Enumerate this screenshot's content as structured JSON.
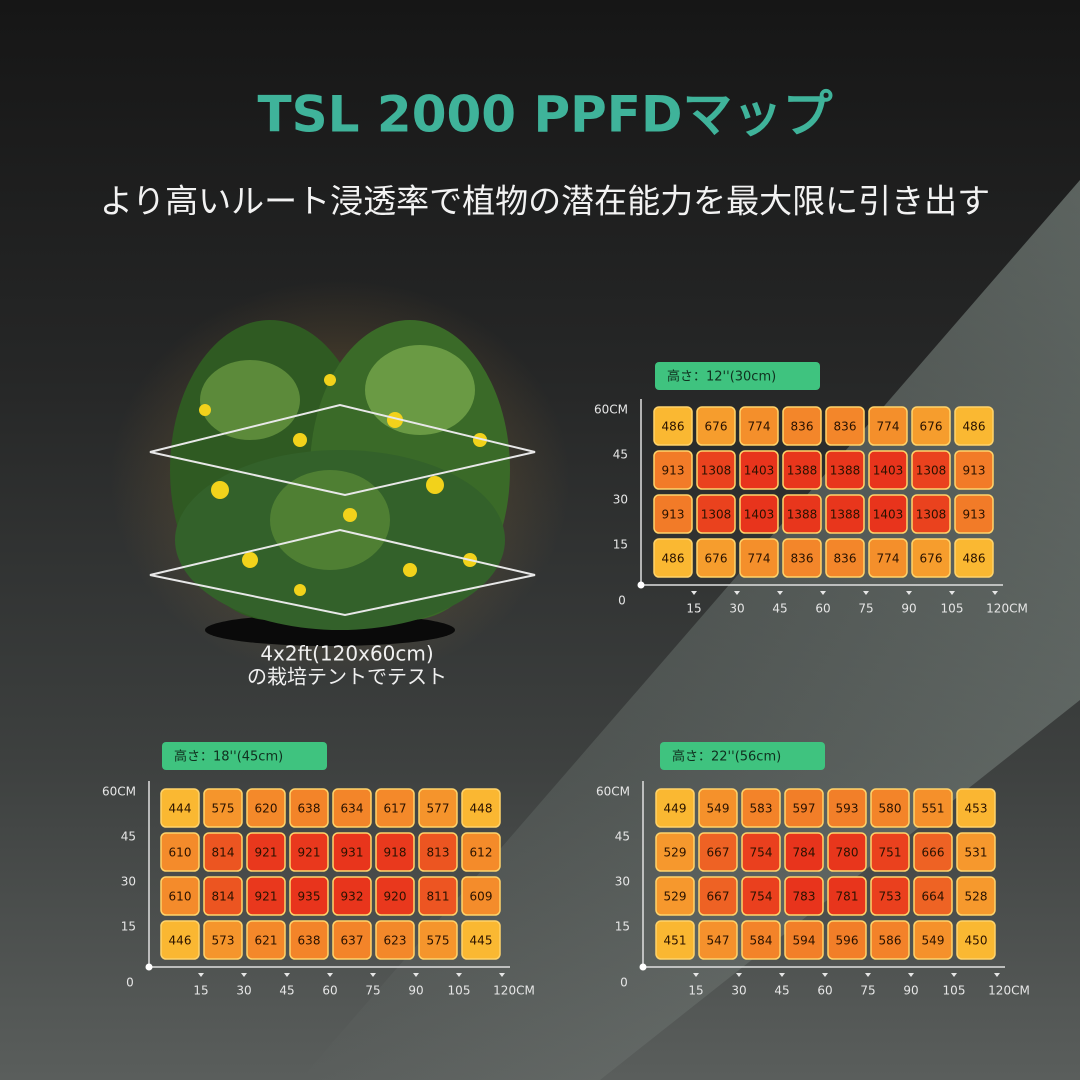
{
  "header": {
    "title": "TSL 2000 PPFDマップ",
    "subtitle": "より高いルート浸透率で植物の潜在能力を最大限に引き出す"
  },
  "photo": {
    "caption": [
      "4x2ft(120x60cm)",
      "の栽培テントでテスト"
    ]
  },
  "maps": [
    {
      "height_label": "高さ：12''(30cm)",
      "y_labels": [
        "60CM",
        "45",
        "30",
        "15"
      ],
      "origin": "0",
      "x_labels": [
        "15",
        "30",
        "45",
        "60",
        "75",
        "90",
        "105",
        "120CM"
      ],
      "rows": [
        [
          486,
          676,
          774,
          836,
          836,
          774,
          676,
          486
        ],
        [
          913,
          1308,
          1403,
          1388,
          1388,
          1403,
          1308,
          913
        ],
        [
          913,
          1308,
          1403,
          1388,
          1388,
          1403,
          1308,
          913
        ],
        [
          486,
          676,
          774,
          836,
          836,
          774,
          676,
          486
        ]
      ]
    },
    {
      "height_label": "高さ：18''(45cm)",
      "y_labels": [
        "60CM",
        "45",
        "30",
        "15"
      ],
      "origin": "0",
      "x_labels": [
        "15",
        "30",
        "45",
        "60",
        "75",
        "90",
        "105",
        "120CM"
      ],
      "rows": [
        [
          444,
          575,
          620,
          638,
          634,
          617,
          577,
          448
        ],
        [
          610,
          814,
          921,
          921,
          931,
          918,
          813,
          612
        ],
        [
          610,
          814,
          921,
          935,
          932,
          920,
          811,
          609
        ],
        [
          446,
          573,
          621,
          638,
          637,
          623,
          575,
          445
        ]
      ]
    },
    {
      "height_label": "高さ：22''(56cm)",
      "y_labels": [
        "60CM",
        "45",
        "30",
        "15"
      ],
      "origin": "0",
      "x_labels": [
        "15",
        "30",
        "45",
        "60",
        "75",
        "90",
        "105",
        "120CM"
      ],
      "rows": [
        [
          449,
          549,
          583,
          597,
          593,
          580,
          551,
          453
        ],
        [
          529,
          667,
          754,
          784,
          780,
          751,
          666,
          531
        ],
        [
          529,
          667,
          754,
          783,
          781,
          753,
          664,
          528
        ],
        [
          451,
          547,
          584,
          594,
          596,
          586,
          549,
          450
        ]
      ]
    }
  ]
}
